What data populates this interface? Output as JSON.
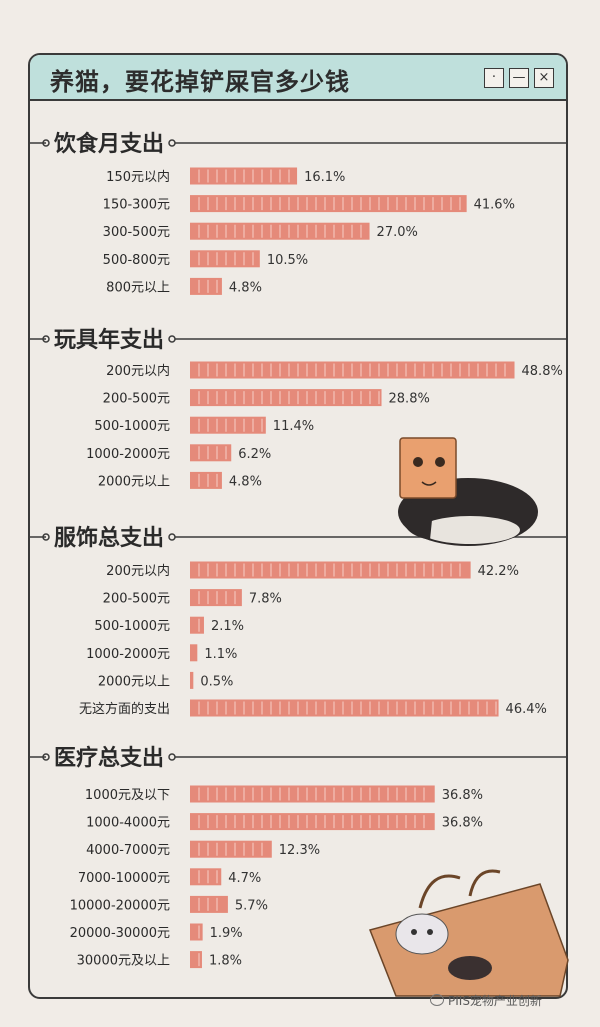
{
  "header": {
    "title": "养猫，要花掉铲屎官多少钱"
  },
  "window_buttons": [
    {
      "label": "·",
      "icon": "dot-icon"
    },
    {
      "label": "—",
      "icon": "minimize-icon"
    },
    {
      "label": "×",
      "icon": "close-icon"
    }
  ],
  "watermark": "PIIS宠物产业创新",
  "colors": {
    "bar": "#e58a7a",
    "bar_stripe": "#f6cfc5",
    "window_header": "#bfe0dc",
    "background": "#efebe6",
    "line": "#3a3a3a"
  },
  "chart_data": [
    {
      "type": "bar",
      "title": "饮食月支出",
      "categories": [
        "150元以内",
        "150-300元",
        "300-500元",
        "500-800元",
        "800元以上"
      ],
      "values": [
        16.1,
        41.6,
        27.0,
        10.5,
        4.8
      ],
      "labels": [
        "16.1%",
        "41.6%",
        "27.0%",
        "10.5%",
        "4.8%"
      ]
    },
    {
      "type": "bar",
      "title": "玩具年支出",
      "categories": [
        "200元以内",
        "200-500元",
        "500-1000元",
        "1000-2000元",
        "2000元以上"
      ],
      "values": [
        48.8,
        28.8,
        11.4,
        6.2,
        4.8
      ],
      "labels": [
        "48.8%",
        "28.8%",
        "11.4%",
        "6.2%",
        "4.8%"
      ]
    },
    {
      "type": "bar",
      "title": "服饰总支出",
      "categories": [
        "200元以内",
        "200-500元",
        "500-1000元",
        "1000-2000元",
        "2000元以上",
        "无这方面的支出"
      ],
      "values": [
        42.2,
        7.8,
        2.1,
        1.1,
        0.5,
        46.4
      ],
      "labels": [
        "42.2%",
        "7.8%",
        "2.1%",
        "1.1%",
        "0.5%",
        "46.4%"
      ]
    },
    {
      "type": "bar",
      "title": "医疗总支出",
      "categories": [
        "1000元及以下",
        "1000-4000元",
        "4000-7000元",
        "7000-10000元",
        "10000-20000元",
        "20000-30000元",
        "30000元及以上"
      ],
      "values": [
        36.8,
        36.8,
        12.3,
        4.7,
        5.7,
        1.9,
        1.8
      ],
      "labels": [
        "36.8%",
        "36.8%",
        "12.3%",
        "4.7%",
        "5.7%",
        "1.9%",
        "1.8%"
      ]
    }
  ]
}
